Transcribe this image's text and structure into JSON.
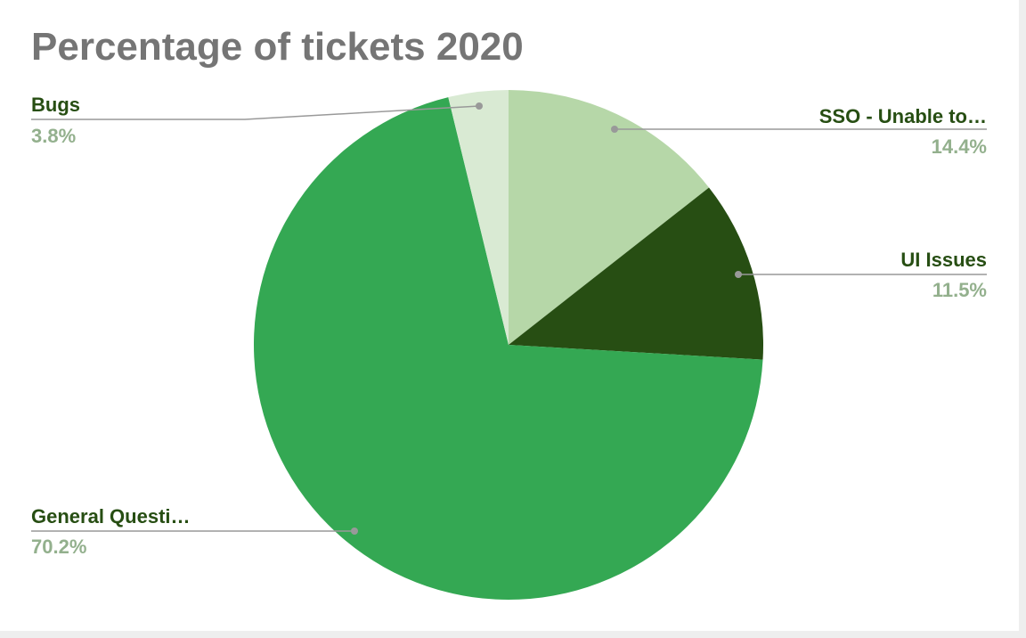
{
  "chart_data": {
    "type": "pie",
    "title": "Percentage of tickets 2020",
    "slices": [
      {
        "label": "SSO - Unable to…",
        "value": 14.4,
        "value_label": "14.4%",
        "color": "#b6d7a8"
      },
      {
        "label": "UI Issues",
        "value": 11.5,
        "value_label": "11.5%",
        "color": "#274e13"
      },
      {
        "label": "General Questi…",
        "value": 70.2,
        "value_label": "70.2%",
        "color": "#34a853"
      },
      {
        "label": "Bugs",
        "value": 3.8,
        "value_label": "3.8%",
        "color": "#d9ead3"
      }
    ],
    "start_angle": "12 o'clock",
    "direction": "clockwise",
    "legend": "none"
  },
  "colors": {
    "title": "#757575",
    "label_name": "#274e13",
    "label_percent": "#93b08d",
    "leader_line": "#999999"
  }
}
